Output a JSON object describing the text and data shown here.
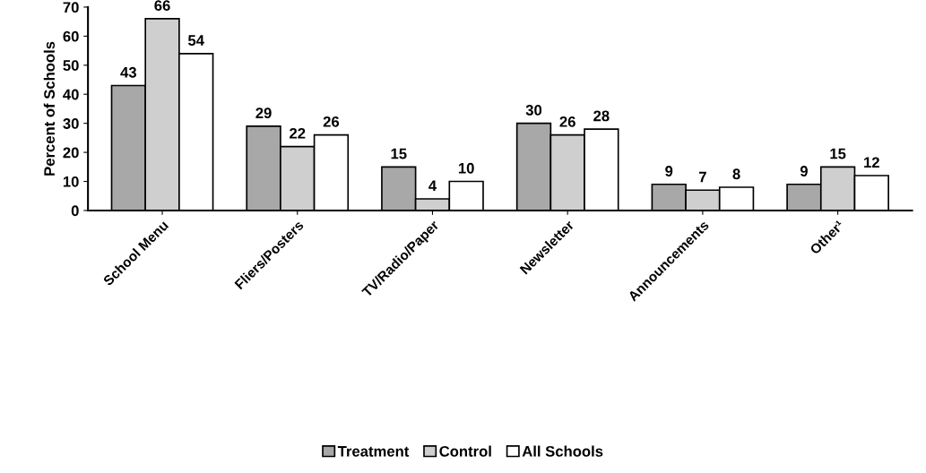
{
  "chart_data": {
    "type": "bar",
    "ylabel": "Percent of Schools",
    "categories": [
      "School Menu",
      "Fliers/Posters",
      "TV/Radio/Paper",
      "Newsletter",
      "Announcements",
      "Other¹"
    ],
    "series": [
      {
        "name": "Treatment",
        "color": "#a8a8a8",
        "values": [
          43,
          29,
          15,
          30,
          9,
          9
        ]
      },
      {
        "name": "Control",
        "color": "#cfcfcf",
        "values": [
          66,
          22,
          4,
          26,
          7,
          15
        ]
      },
      {
        "name": "All Schools",
        "color": "#ffffff",
        "values": [
          54,
          26,
          10,
          28,
          8,
          12
        ]
      }
    ],
    "ylim": [
      0,
      70
    ],
    "yticks": [
      0,
      10,
      20,
      30,
      40,
      50,
      60,
      70
    ],
    "data_labels": true,
    "grid": false,
    "legend": "bottom"
  }
}
